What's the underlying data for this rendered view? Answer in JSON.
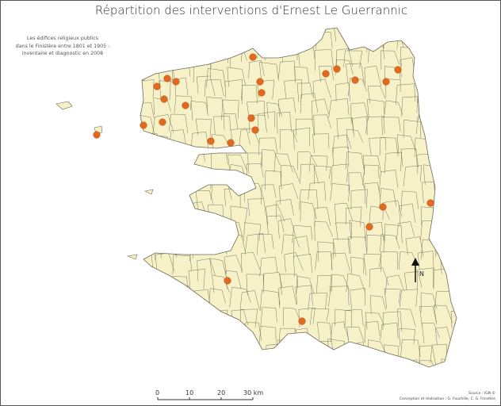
{
  "title": "Répartition des interventions d'Ernest Le Guerrannic",
  "subtitle": [
    "Les édifices religieux publics",
    "dans le Finistère entre 1801 et 1905 :",
    "inventaire et diagnostic en 2008"
  ],
  "scale_bar": {
    "ticks": [
      "0",
      "10",
      "20",
      "30 km"
    ]
  },
  "north_label": "N",
  "credits": {
    "source": "Source : IGN ©",
    "authors": "Conception et réalisation : G. Fouchille, C. G. Finistère"
  },
  "colors": {
    "land": "#f7f1c8",
    "border": "#6b6b5a",
    "marker": "#e2691f",
    "marker_stroke": "#b34a10"
  },
  "marker_count": 25
}
